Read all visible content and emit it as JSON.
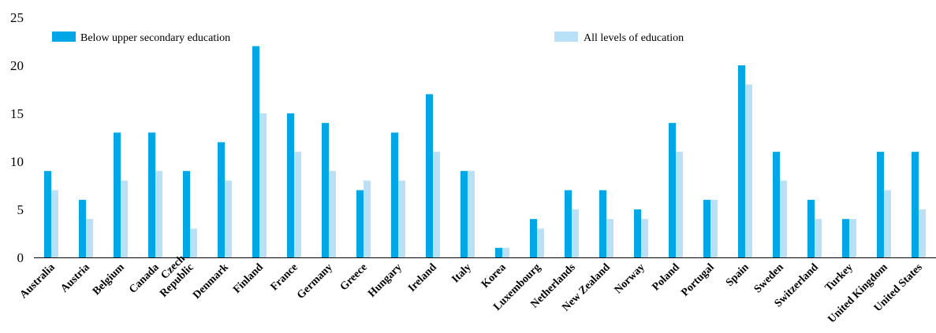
{
  "chart_data": {
    "type": "bar",
    "categories": [
      "Australia",
      "Austria",
      "Belgium",
      "Canada",
      "Czech Republic",
      "Denmark",
      "Finland",
      "France",
      "Germany",
      "Greece",
      "Hungary",
      "Ireland",
      "Italy",
      "Korea",
      "Luxembourg",
      "Netherlands",
      "New Zealand",
      "Norway",
      "Poland",
      "Portugal",
      "Spain",
      "Sweden",
      "Switzerland",
      "Turkey",
      "United Kingdom",
      "United States"
    ],
    "series": [
      {
        "name": "Below upper secondary education",
        "color": "#00a7e6",
        "values": [
          9,
          6,
          13,
          13,
          9,
          12,
          22,
          15,
          14,
          7,
          13,
          17,
          9,
          1,
          4,
          7,
          7,
          5,
          14,
          6,
          20,
          11,
          6,
          4,
          11,
          11
        ]
      },
      {
        "name": "All levels of education",
        "color": "#b8e0f7",
        "values": [
          7,
          4,
          8,
          9,
          3,
          8,
          15,
          11,
          9,
          8,
          8,
          11,
          9,
          1,
          3,
          5,
          4,
          4,
          11,
          6,
          18,
          8,
          4,
          4,
          7,
          5
        ]
      }
    ],
    "ylim": [
      0,
      25
    ],
    "yticks": [
      "0",
      "5",
      "10",
      "15",
      "20",
      "25"
    ],
    "grid": false,
    "legend_position": "top"
  }
}
